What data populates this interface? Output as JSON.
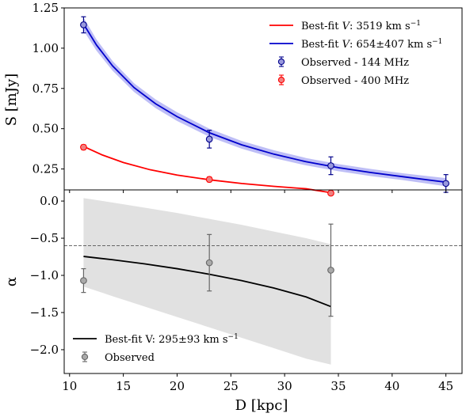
{
  "chart_data": [
    {
      "type": "line",
      "panel": "top",
      "xlabel": "",
      "ylabel": "S [mJy]",
      "xlim": [
        9.5,
        46.5
      ],
      "ylim": [
        0.12,
        1.25
      ],
      "yticks": [
        0.25,
        0.5,
        0.75,
        1.0,
        1.25
      ],
      "ytick_labels": [
        "0.25",
        "0.50",
        "0.75",
        "1.00",
        "1.25"
      ],
      "legend_position": "top-right",
      "series": [
        {
          "name": "Best-fit V: 3519 km s⁻¹",
          "kind": "fit",
          "color": "#ff0000",
          "x": [
            11.3,
            13,
            15,
            17.5,
            20,
            23,
            26,
            29,
            32,
            34.3
          ],
          "y": [
            0.39,
            0.338,
            0.29,
            0.245,
            0.212,
            0.183,
            0.16,
            0.142,
            0.127,
            0.103
          ]
        },
        {
          "name": "Best-fit V: 654±407 km s⁻¹",
          "kind": "fit",
          "color": "#0000cc",
          "band_color": "#8888ee",
          "x": [
            11.3,
            12.5,
            14,
            16,
            18,
            20,
            23,
            26,
            29,
            32,
            35,
            38,
            41,
            45
          ],
          "y": [
            1.15,
            1.02,
            0.89,
            0.755,
            0.655,
            0.575,
            0.475,
            0.4,
            0.342,
            0.295,
            0.258,
            0.228,
            0.202,
            0.168
          ],
          "band_lower": [
            1.11,
            0.985,
            0.86,
            0.728,
            0.628,
            0.548,
            0.45,
            0.376,
            0.318,
            0.272,
            0.236,
            0.206,
            0.181,
            0.143
          ],
          "band_upper": [
            1.19,
            1.055,
            0.92,
            0.782,
            0.682,
            0.602,
            0.5,
            0.424,
            0.366,
            0.318,
            0.28,
            0.25,
            0.223,
            0.193
          ]
        },
        {
          "name": "Observed - 144 MHz",
          "kind": "points",
          "color": "#00008b",
          "face": "#9999dd",
          "x": [
            11.3,
            23.0,
            34.3,
            45.0
          ],
          "y": [
            1.145,
            0.435,
            0.27,
            0.16
          ],
          "yerr": [
            0.05,
            0.055,
            0.055,
            0.055
          ]
        },
        {
          "name": "Observed - 400 MHz",
          "kind": "points",
          "color": "#ff0000",
          "face": "#f08080",
          "x": [
            11.3,
            23.0,
            34.3
          ],
          "y": [
            0.385,
            0.185,
            0.1
          ],
          "yerr": [
            0.015,
            0.015,
            0.012
          ]
        }
      ]
    },
    {
      "type": "line",
      "panel": "bottom",
      "xlabel": "D [kpc]",
      "ylabel": "α",
      "xlim": [
        9.5,
        46.5
      ],
      "ylim": [
        -2.32,
        0.15
      ],
      "xticks": [
        10,
        15,
        20,
        25,
        30,
        35,
        40,
        45
      ],
      "xtick_labels": [
        "10",
        "15",
        "20",
        "25",
        "30",
        "35",
        "40",
        "45"
      ],
      "yticks": [
        0.0,
        -0.5,
        -1.0,
        -1.5,
        -2.0
      ],
      "ytick_labels": [
        "0.0",
        "−0.5",
        "−1.0",
        "−1.5",
        "−2.0"
      ],
      "reference_line": {
        "y": -0.6,
        "style": "dashed",
        "color": "#555555"
      },
      "legend_position": "bottom-left",
      "series": [
        {
          "name": "Best-fit V: 295±93 km s⁻¹",
          "kind": "fit",
          "color": "#000000",
          "band_color": "#d9d9d9",
          "x": [
            11.3,
            14,
            17,
            20,
            23,
            26,
            29,
            32,
            34.3
          ],
          "y": [
            -0.745,
            -0.79,
            -0.845,
            -0.91,
            -0.985,
            -1.07,
            -1.17,
            -1.29,
            -1.42
          ],
          "band_lower": [
            -1.15,
            -1.28,
            -1.42,
            -1.56,
            -1.7,
            -1.84,
            -1.98,
            -2.12,
            -2.2
          ],
          "band_upper": [
            0.04,
            -0.02,
            -0.09,
            -0.16,
            -0.24,
            -0.32,
            -0.41,
            -0.5,
            -0.58
          ]
        },
        {
          "name": "Observed",
          "kind": "points",
          "color": "#666666",
          "face": "#aaaaaa",
          "x": [
            11.3,
            23.0,
            34.3
          ],
          "y": [
            -1.07,
            -0.83,
            -0.93
          ],
          "yerr": [
            0.16,
            0.38,
            0.62
          ]
        }
      ]
    }
  ],
  "legend_top": [
    {
      "kind": "line",
      "color": "#ff0000",
      "prefix": "Best-fit ",
      "italic": "V",
      "suffix": ": 3519 km s",
      "sup": "−1"
    },
    {
      "kind": "line",
      "color": "#0000cc",
      "prefix": "Best-fit ",
      "italic": "V",
      "suffix": ": 654±407 km s",
      "sup": "−1"
    },
    {
      "kind": "marker",
      "color": "#00008b",
      "face": "#9999dd",
      "prefix": "Observed - 144 MHz",
      "italic": "",
      "suffix": "",
      "sup": ""
    },
    {
      "kind": "marker",
      "color": "#ff0000",
      "face": "#f08080",
      "prefix": "Observed - 400 MHz",
      "italic": "",
      "suffix": "",
      "sup": ""
    }
  ],
  "legend_bottom": [
    {
      "kind": "line",
      "color": "#000000",
      "prefix": "Best-fit V: 295±93 km s",
      "italic": "",
      "suffix": "",
      "sup": "−1"
    },
    {
      "kind": "marker",
      "color": "#666666",
      "face": "#aaaaaa",
      "prefix": "Observed",
      "italic": "",
      "suffix": "",
      "sup": ""
    }
  ]
}
